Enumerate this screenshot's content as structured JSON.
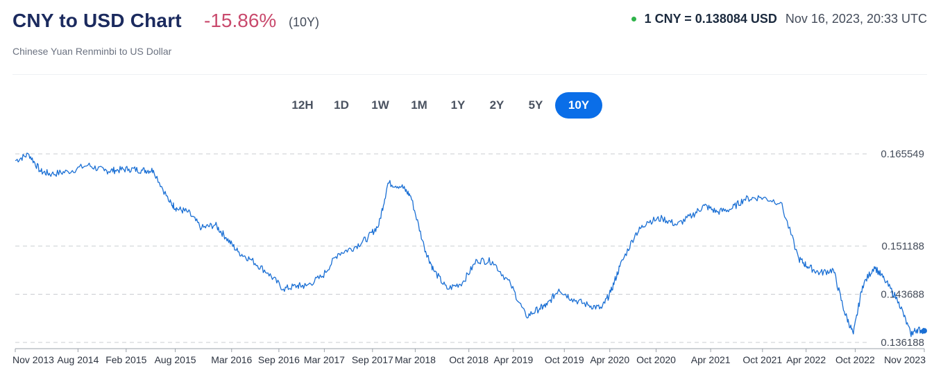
{
  "header": {
    "title": "CNY to USD Chart",
    "change": "-15.86%",
    "period": "(10Y)",
    "subtitle": "Chinese Yuan Renminbi to US Dollar",
    "rate": "1 CNY = 0.138084 USD",
    "timestamp": "Nov 16, 2023, 20:33 UTC"
  },
  "colors": {
    "live_dot": "#2fb34a",
    "line": "#1a6fd4",
    "accent": "#0a6ee8",
    "change_negative": "#c94a6d"
  },
  "tabs": [
    {
      "label": "12H",
      "active": false
    },
    {
      "label": "1D",
      "active": false
    },
    {
      "label": "1W",
      "active": false
    },
    {
      "label": "1M",
      "active": false
    },
    {
      "label": "1Y",
      "active": false
    },
    {
      "label": "2Y",
      "active": false
    },
    {
      "label": "5Y",
      "active": false
    },
    {
      "label": "10Y",
      "active": true
    }
  ],
  "chart_data": {
    "type": "line",
    "title": "",
    "xlabel": "",
    "ylabel": "",
    "grid": "horizontal-dashed",
    "y_tick_labels": [
      "0.165549",
      "0.151188",
      "0.143688",
      "0.136188"
    ],
    "y_ticks": [
      0.165549,
      0.151188,
      0.143688,
      0.136188
    ],
    "ylim": [
      0.136188,
      0.166
    ],
    "x_tick_labels": [
      "Nov 2013",
      "Aug 2014",
      "Feb 2015",
      "Aug 2015",
      "Mar 2016",
      "Sep 2016",
      "Mar 2017",
      "Sep 2017",
      "Mar 2018",
      "Oct 2018",
      "Apr 2019",
      "Oct 2019",
      "Apr 2020",
      "Oct 2020",
      "Apr 2021",
      "Oct 2021",
      "Apr 2022",
      "Oct 2022",
      "Nov 2023"
    ],
    "x_ticks": [
      0,
      0.69,
      1.22,
      1.76,
      2.38,
      2.9,
      3.4,
      3.93,
      4.4,
      4.99,
      5.48,
      6.04,
      6.54,
      7.05,
      7.65,
      8.22,
      8.7,
      9.24,
      10
    ],
    "series": [
      {
        "x": [
          0,
          0.15,
          0.28,
          0.4,
          0.58,
          0.8,
          0.98,
          1.1,
          1.25,
          1.4,
          1.52,
          1.7,
          1.78,
          1.9,
          2.05,
          2.2,
          2.32,
          2.45,
          2.6,
          2.78,
          2.95,
          3.1,
          3.2,
          3.38,
          3.55,
          3.73,
          3.88,
          4.0,
          4.1,
          4.25,
          4.35,
          4.5,
          4.6,
          4.75,
          4.92,
          5.08,
          5.25,
          5.45,
          5.62,
          5.77,
          5.85,
          5.98,
          6.12,
          6.3,
          6.45,
          6.55,
          6.65,
          6.82,
          6.95,
          7.12,
          7.28,
          7.45,
          7.58,
          7.72,
          7.88,
          8.02,
          8.2,
          8.42,
          8.62,
          8.72,
          8.85,
          9.0,
          9.12,
          9.22,
          9.32,
          9.45,
          9.56,
          9.72,
          9.85,
          9.92,
          10.0
        ],
        "y": [
          0.1645,
          0.1655,
          0.1628,
          0.1624,
          0.1628,
          0.1638,
          0.1629,
          0.163,
          0.1632,
          0.163,
          0.163,
          0.158,
          0.157,
          0.1565,
          0.154,
          0.1545,
          0.1525,
          0.1503,
          0.149,
          0.147,
          0.1445,
          0.145,
          0.145,
          0.1465,
          0.15,
          0.151,
          0.1525,
          0.1545,
          0.161,
          0.1605,
          0.159,
          0.151,
          0.1475,
          0.1445,
          0.1455,
          0.149,
          0.1488,
          0.1452,
          0.1402,
          0.1415,
          0.142,
          0.1445,
          0.143,
          0.142,
          0.1415,
          0.144,
          0.148,
          0.153,
          0.155,
          0.1555,
          0.1545,
          0.156,
          0.1575,
          0.1565,
          0.157,
          0.1585,
          0.1588,
          0.158,
          0.1492,
          0.148,
          0.147,
          0.1475,
          0.141,
          0.1375,
          0.145,
          0.148,
          0.146,
          0.1425,
          0.1375,
          0.1382,
          0.138
        ]
      }
    ]
  }
}
